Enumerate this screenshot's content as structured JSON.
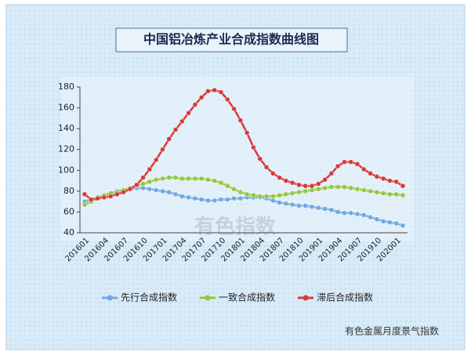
{
  "chart_data": {
    "type": "line",
    "title": "中国铝冶炼产业合成指数曲线图",
    "watermark": "有色指数",
    "footer": "有色金属月度景气指数",
    "categories": [
      "201601",
      null,
      null,
      "201604",
      null,
      null,
      "201607",
      null,
      null,
      "201610",
      null,
      null,
      "201701",
      null,
      null,
      "201704",
      null,
      null,
      "201707",
      null,
      null,
      "201710",
      null,
      null,
      "201801",
      null,
      null,
      "201804",
      null,
      null,
      "201807",
      null,
      null,
      "201810",
      null,
      null,
      "201901",
      null,
      null,
      "201904",
      null,
      null,
      "201907",
      null,
      null,
      "201910",
      null,
      null,
      "202001",
      null
    ],
    "series": [
      {
        "name": "先行合成指数",
        "color": "#6fa8dc",
        "values": [
          70,
          72,
          74,
          76,
          78,
          80,
          81,
          82,
          83,
          83,
          82,
          81,
          80,
          79,
          77,
          75,
          74,
          73,
          72,
          71,
          71,
          72,
          72,
          73,
          73,
          74,
          74,
          74,
          73,
          71,
          69,
          68,
          67,
          66,
          66,
          65,
          64,
          63,
          62,
          60,
          59,
          59,
          58,
          57,
          55,
          53,
          51,
          50,
          49,
          47
        ]
      },
      {
        "name": "一致合成指数",
        "color": "#92c83e",
        "values": [
          67,
          70,
          73,
          76,
          78,
          79,
          81,
          83,
          85,
          87,
          89,
          91,
          92,
          93,
          93,
          92,
          92,
          92,
          92,
          91,
          90,
          88,
          85,
          82,
          79,
          77,
          76,
          75,
          75,
          75,
          76,
          77,
          78,
          79,
          80,
          81,
          82,
          83,
          84,
          84,
          84,
          83,
          82,
          81,
          80,
          79,
          78,
          77,
          77,
          76
        ]
      },
      {
        "name": "滞后合成指数",
        "color": "#d63a3a",
        "values": [
          77,
          72,
          73,
          74,
          75,
          77,
          79,
          82,
          86,
          93,
          101,
          110,
          120,
          130,
          139,
          147,
          155,
          163,
          170,
          176,
          177,
          175,
          168,
          159,
          148,
          136,
          122,
          111,
          103,
          97,
          93,
          90,
          88,
          86,
          85,
          85,
          87,
          91,
          97,
          104,
          108,
          108,
          106,
          101,
          97,
          94,
          92,
          90,
          89,
          85
        ]
      }
    ],
    "ylim": [
      40,
      180
    ],
    "yticks": [
      40,
      60,
      80,
      100,
      120,
      140,
      160,
      180
    ],
    "grid": false
  }
}
